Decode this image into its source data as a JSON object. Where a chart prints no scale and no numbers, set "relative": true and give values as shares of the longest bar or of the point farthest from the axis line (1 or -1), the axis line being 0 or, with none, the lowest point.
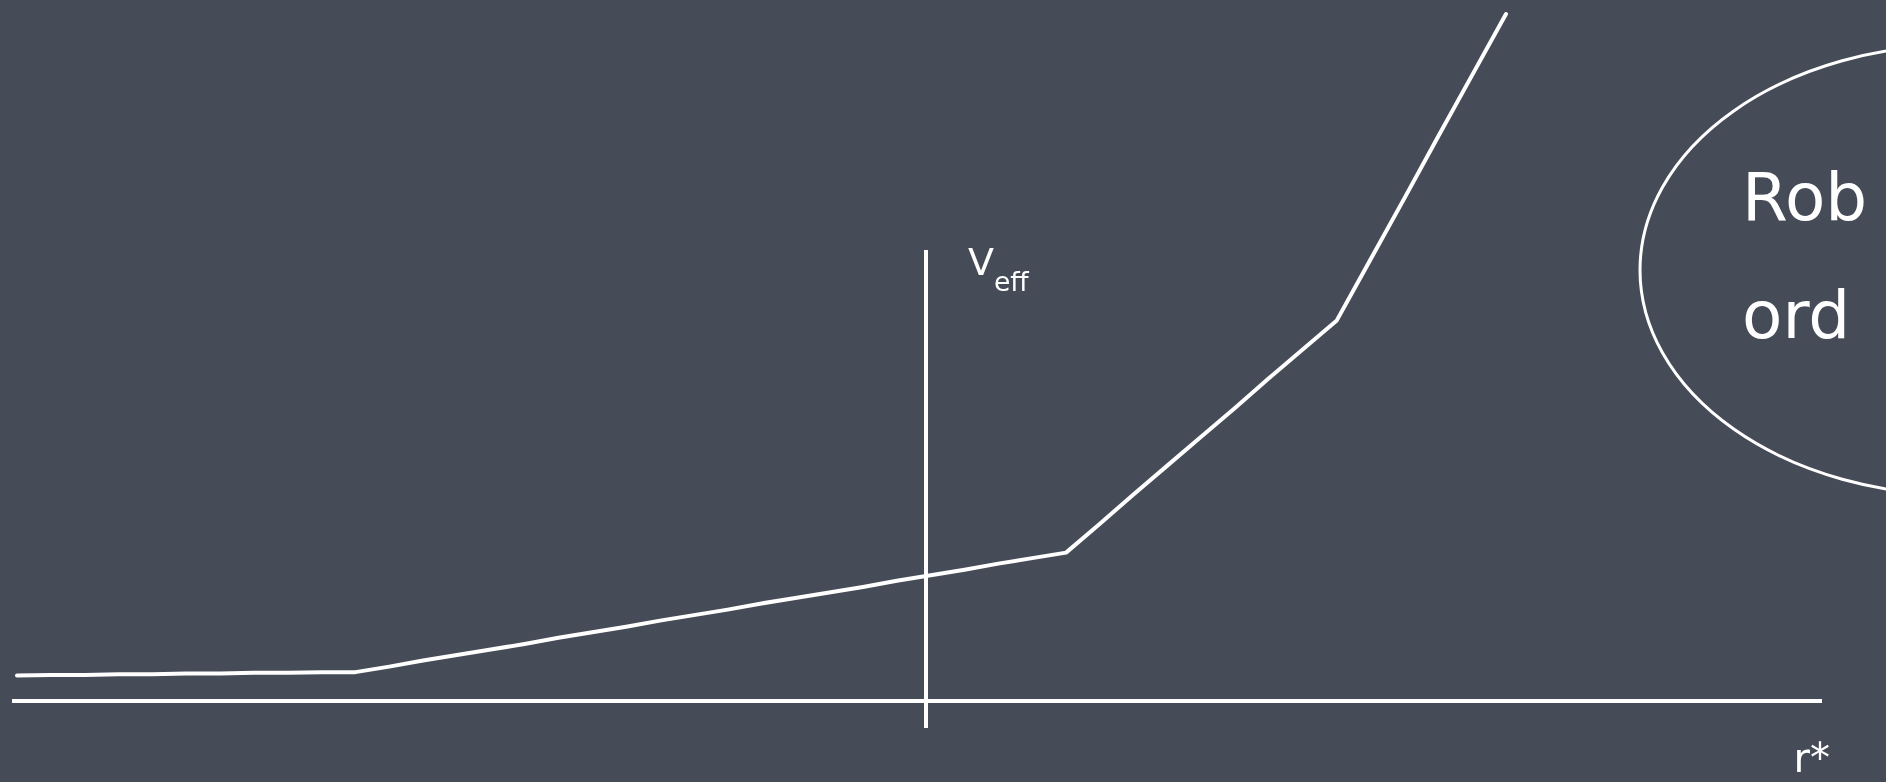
{
  "chart_data": {
    "type": "line",
    "relative": true,
    "ylabel": "V$_{eff}$",
    "annotations": [
      "Rob",
      "ord",
      "r*"
    ],
    "categories": [
      null,
      null,
      null,
      null,
      null,
      null,
      null,
      null,
      null,
      null,
      null,
      null,
      null,
      null,
      null,
      null,
      null,
      null,
      null,
      null,
      null,
      null,
      null,
      null,
      null,
      null,
      null,
      null,
      null,
      null,
      null,
      null,
      null,
      null,
      null,
      null,
      null,
      null,
      null,
      null,
      null,
      null,
      null,
      null,
      null
    ],
    "series": [
      {
        "color": "#ffffff",
        "values": [
          0.037,
          0.038,
          0.038,
          0.039,
          0.039,
          0.04,
          0.04,
          0.041,
          0.041,
          0.042,
          0.042,
          0.05,
          0.059,
          0.067,
          0.075,
          0.083,
          0.092,
          0.1,
          0.108,
          0.117,
          0.125,
          0.133,
          0.142,
          0.15,
          0.158,
          0.166,
          0.175,
          0.183,
          0.191,
          0.2,
          0.208,
          0.216,
          0.258,
          0.301,
          0.343,
          0.385,
          0.427,
          0.47,
          0.512,
          0.554,
          0.643,
          0.732,
          0.822,
          0.911,
          1
        ]
      }
    ],
    "marker": "none",
    "line_style": "solid"
  }
}
